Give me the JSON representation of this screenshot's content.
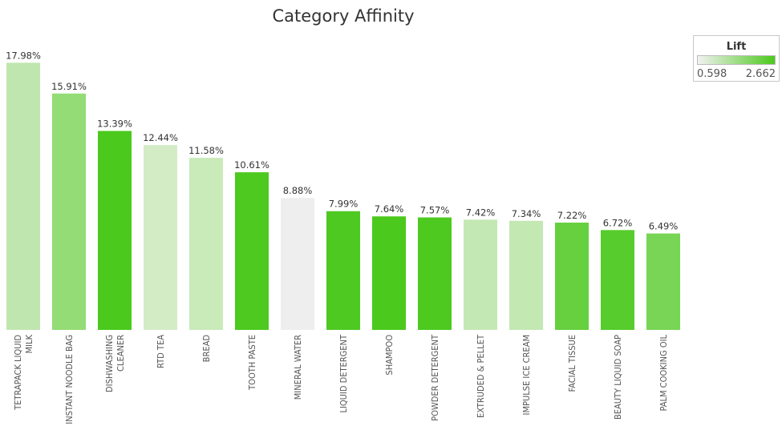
{
  "chart_data": {
    "type": "bar",
    "title": "Category Affinity",
    "categories": [
      [
        "TETRAPACK LIQUID",
        "MILK"
      ],
      [
        "INSTANT NOODLE BAG"
      ],
      [
        "DISHWASHING",
        "CLEANER"
      ],
      [
        "RTD TEA"
      ],
      [
        "BREAD"
      ],
      [
        "TOOTH PASTE"
      ],
      [
        "MINERAL WATER"
      ],
      [
        "LIQUID DETERGENT"
      ],
      [
        "SHAMPOO"
      ],
      [
        "POWDER DETERGENT"
      ],
      [
        "EXTRUDED & PELLET"
      ],
      [
        "IMPULSE ICE CREAM"
      ],
      [
        "FACIAL TISSUE"
      ],
      [
        "BEAUTY LIQUID SOAP"
      ],
      [
        "PALM COOKING OIL"
      ]
    ],
    "values": [
      17.98,
      15.91,
      13.39,
      12.44,
      11.58,
      10.61,
      8.88,
      7.99,
      7.64,
      7.57,
      7.42,
      7.34,
      7.22,
      6.72,
      6.49
    ],
    "value_labels": [
      "17.98%",
      "15.91%",
      "13.39%",
      "12.44%",
      "11.58%",
      "10.61%",
      "8.88%",
      "7.99%",
      "7.64%",
      "7.57%",
      "7.42%",
      "7.34%",
      "7.22%",
      "6.72%",
      "6.49%"
    ],
    "bar_colors": [
      "#bfe6ae",
      "#94dc76",
      "#4bc91c",
      "#d3ecc6",
      "#c9eab9",
      "#4dc91f",
      "#eeeeee",
      "#4ec922",
      "#4bc91c",
      "#4dc91f",
      "#c4e8b3",
      "#c3e8b2",
      "#66d03f",
      "#57cc2d",
      "#78d555"
    ],
    "ylim": [
      0,
      18
    ],
    "grid": false,
    "legend": {
      "title": "Lift",
      "min_label": "0.598",
      "max_label": "2.662",
      "color_low": "#f2f2f2",
      "color_high": "#4bc91c",
      "position": "top-right"
    }
  }
}
